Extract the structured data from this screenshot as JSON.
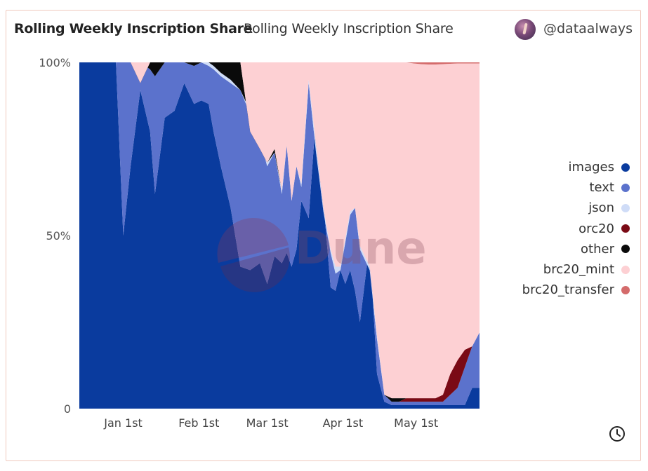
{
  "header": {
    "title": "Rolling Weekly Inscription Share",
    "subtitle": "Rolling Weekly Inscription Share",
    "handle": "@dataalways"
  },
  "watermark": "Dune",
  "chart_data": {
    "type": "area",
    "stacking": "percent",
    "y_ticks": [
      "100%",
      "50%",
      "0"
    ],
    "x_ticks": [
      {
        "label": "Jan 1st",
        "date": "2023-01-01"
      },
      {
        "label": "Feb 1st",
        "date": "2023-02-01"
      },
      {
        "label": "Mar 1st",
        "date": "2023-03-01"
      },
      {
        "label": "Apr 1st",
        "date": "2023-04-01"
      },
      {
        "label": "May 1st",
        "date": "2023-05-01"
      }
    ],
    "x_range": [
      "2022-12-14",
      "2023-05-27"
    ],
    "ylim": [
      0,
      100
    ],
    "legend_position": "right",
    "series": [
      {
        "name": "images",
        "color": "#0a3b9e"
      },
      {
        "name": "text",
        "color": "#5b72cc"
      },
      {
        "name": "json",
        "color": "#cfdcf7"
      },
      {
        "name": "orc20",
        "color": "#7a0a15"
      },
      {
        "name": "other",
        "color": "#0a0a0a"
      },
      {
        "name": "brc20_mint",
        "color": "#fdd0d3"
      },
      {
        "name": "brc20_transfer",
        "color": "#d46b6b"
      }
    ],
    "boundaries": {
      "dates": [
        "2022-12-14",
        "2022-12-29",
        "2023-01-01",
        "2023-01-04",
        "2023-01-08",
        "2023-01-12",
        "2023-01-14",
        "2023-01-18",
        "2023-01-22",
        "2023-01-26",
        "2023-01-30",
        "2023-02-02",
        "2023-02-05",
        "2023-02-07",
        "2023-02-10",
        "2023-02-14",
        "2023-02-18",
        "2023-02-22",
        "2023-02-26",
        "2023-03-01",
        "2023-03-04",
        "2023-03-07",
        "2023-03-09",
        "2023-03-11",
        "2023-03-13",
        "2023-03-15",
        "2023-03-18",
        "2023-03-21",
        "2023-03-24",
        "2023-03-27",
        "2023-03-29",
        "2023-03-31",
        "2023-04-02",
        "2023-04-04",
        "2023-04-06",
        "2023-04-08",
        "2023-04-12",
        "2023-04-15",
        "2023-04-18",
        "2023-04-21",
        "2023-04-24",
        "2023-04-27",
        "2023-04-30",
        "2023-05-03",
        "2023-05-06",
        "2023-05-09",
        "2023-05-12",
        "2023-05-15",
        "2023-05-18",
        "2023-05-21",
        "2023-05-24",
        "2023-05-27"
      ],
      "images": [
        100,
        100,
        50,
        70,
        92,
        80,
        62,
        84,
        86,
        94,
        88,
        89,
        88,
        80,
        70,
        58,
        41,
        40,
        42,
        36,
        44,
        42,
        45,
        41,
        46,
        60,
        55,
        85,
        60,
        35,
        34,
        40,
        36,
        40,
        34,
        25,
        48,
        10,
        2,
        1,
        1,
        1,
        1,
        1,
        1,
        1,
        1,
        1,
        1,
        1,
        6,
        6
      ],
      "text": [
        100,
        100,
        100,
        100,
        100,
        98,
        96,
        100,
        100,
        100,
        99,
        100,
        99,
        98,
        96,
        94,
        92,
        85,
        78,
        70,
        74,
        62,
        76,
        60,
        70,
        64,
        94,
        74,
        57,
        45,
        39,
        40,
        48,
        56,
        58,
        46,
        40,
        20,
        4,
        2,
        2,
        2,
        2,
        2,
        2,
        2,
        2,
        4,
        6,
        12,
        18,
        22
      ],
      "json": [
        100,
        100,
        100,
        100,
        100,
        98,
        96,
        100,
        100,
        100,
        99,
        100,
        100,
        99,
        97,
        95,
        92,
        86,
        79,
        71,
        74,
        63,
        76,
        60,
        70,
        65,
        95,
        76,
        58,
        46,
        41,
        41,
        49,
        57,
        58,
        47,
        41,
        21,
        4,
        2,
        2,
        2,
        2,
        2,
        2,
        2,
        2,
        4,
        6,
        12,
        18,
        22
      ],
      "orc20": [
        100,
        100,
        100,
        100,
        100,
        98,
        96,
        100,
        100,
        100,
        99,
        100,
        100,
        99,
        97,
        95,
        92,
        86,
        79,
        71,
        74,
        63,
        76,
        60,
        70,
        65,
        95,
        76,
        58,
        46,
        41,
        41,
        49,
        57,
        58,
        47,
        41,
        21,
        4,
        2,
        2,
        3,
        3,
        3,
        3,
        3,
        4,
        10,
        14,
        17,
        18,
        22
      ],
      "other": [
        100,
        100,
        100,
        100,
        94,
        100,
        100,
        100,
        100,
        100,
        100,
        100,
        100,
        100,
        100,
        100,
        100,
        80,
        75,
        71,
        75,
        63,
        76,
        60,
        70,
        65,
        95,
        76,
        58,
        46,
        41,
        41,
        49,
        57,
        58,
        47,
        41,
        21,
        4,
        3,
        3,
        3,
        3,
        3,
        3,
        3,
        4,
        10,
        14,
        17,
        18,
        22
      ],
      "brc20_mint": [
        100,
        100,
        100,
        100,
        100,
        100,
        100,
        100,
        100,
        100,
        100,
        100,
        100,
        100,
        100,
        100,
        100,
        100,
        100,
        100,
        100,
        100,
        100,
        100,
        100,
        100,
        100,
        100,
        100,
        100,
        100,
        100,
        100,
        100,
        100,
        100,
        100,
        100,
        100,
        100,
        100,
        100,
        100,
        100,
        100,
        100,
        100,
        100,
        100,
        100,
        100,
        100
      ],
      "brc20_transfer": [
        100,
        100,
        100,
        100,
        100,
        100,
        100,
        100,
        100,
        100,
        100,
        100,
        100,
        100,
        100,
        100,
        100,
        100,
        100,
        100,
        100,
        100,
        100,
        100,
        100,
        100,
        100,
        100,
        100,
        100,
        100,
        100,
        100,
        100,
        100,
        100,
        100,
        100,
        100,
        100,
        100,
        100,
        100,
        100,
        100,
        100,
        100,
        100,
        100,
        100,
        100,
        100
      ]
    },
    "brc20_transfer_share": [
      0,
      0,
      0,
      0,
      0,
      0,
      0,
      0,
      0,
      0,
      0,
      0,
      0,
      0,
      0,
      0,
      0,
      0,
      0,
      0,
      0,
      0,
      0,
      0,
      0,
      0,
      0,
      0,
      0,
      0,
      0,
      0,
      0,
      0,
      0,
      0,
      0,
      0,
      0,
      0,
      0,
      0,
      0.3,
      0.5,
      0.6,
      0.6,
      0.5,
      0.4,
      0.3,
      0.3,
      0.3,
      0.3
    ]
  }
}
